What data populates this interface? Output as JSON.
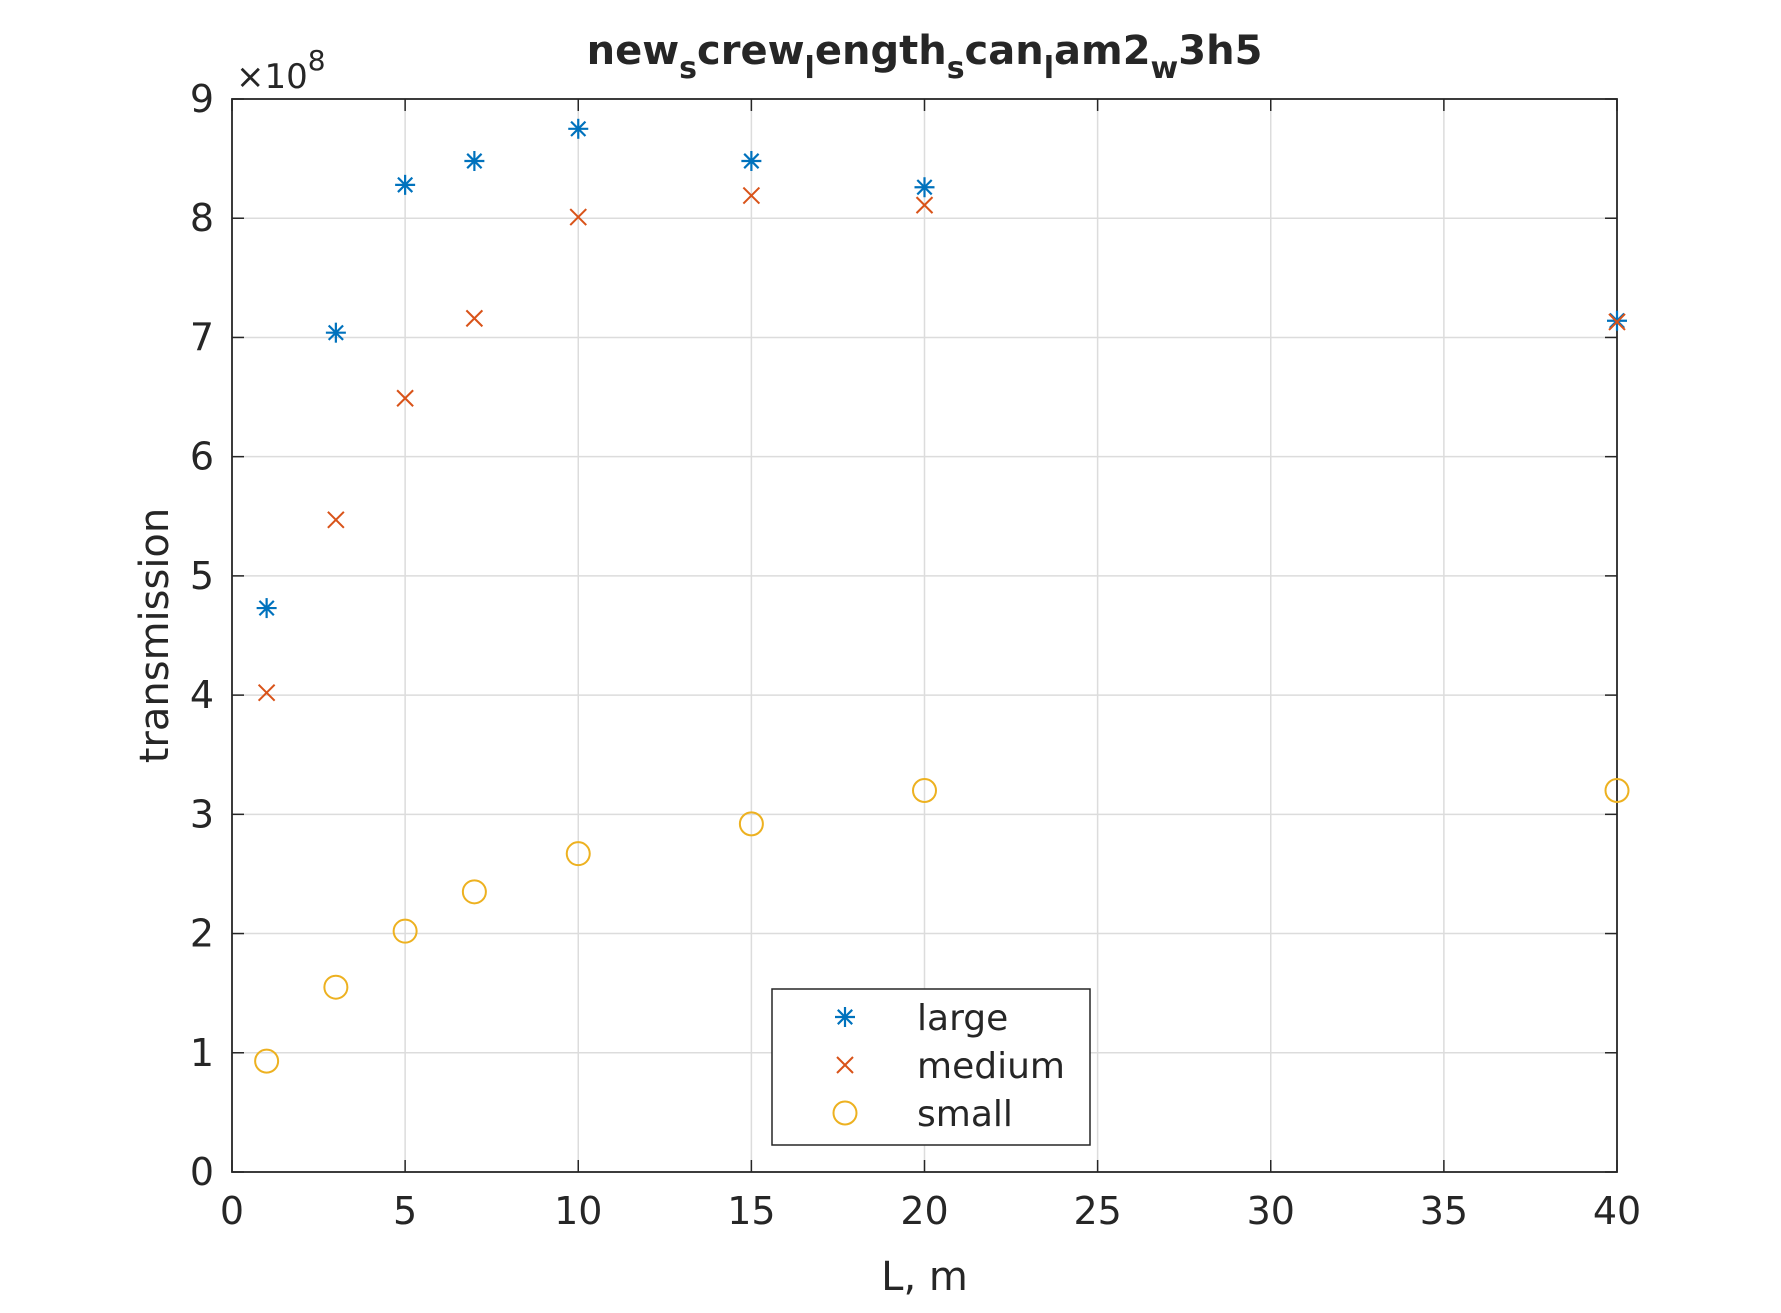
{
  "chart_data": {
    "type": "scatter",
    "title_parts": [
      {
        "text": "new",
        "sub": false
      },
      {
        "text": "s",
        "sub": true
      },
      {
        "text": "crew",
        "sub": false
      },
      {
        "text": "l",
        "sub": true
      },
      {
        "text": "ength",
        "sub": false
      },
      {
        "text": "s",
        "sub": true
      },
      {
        "text": "can",
        "sub": false
      },
      {
        "text": "l",
        "sub": true
      },
      {
        "text": "am2",
        "sub": false
      },
      {
        "text": "w",
        "sub": true
      },
      {
        "text": "3h5",
        "sub": false
      }
    ],
    "xlabel": "L, m",
    "ylabel": "transmission",
    "y_exponent": {
      "base": "×10",
      "power": "8"
    },
    "x_ticks": [
      {
        "value": 0,
        "label": "0"
      },
      {
        "value": 5,
        "label": "5"
      },
      {
        "value": 10,
        "label": "10"
      },
      {
        "value": 15,
        "label": "15"
      },
      {
        "value": 20,
        "label": "20"
      },
      {
        "value": 25,
        "label": "25"
      },
      {
        "value": 30,
        "label": "30"
      },
      {
        "value": 35,
        "label": "35"
      },
      {
        "value": 40,
        "label": "40"
      }
    ],
    "y_ticks": [
      {
        "value": 0,
        "label": "0"
      },
      {
        "value": 1,
        "label": "1"
      },
      {
        "value": 2,
        "label": "2"
      },
      {
        "value": 3,
        "label": "3"
      },
      {
        "value": 4,
        "label": "4"
      },
      {
        "value": 5,
        "label": "5"
      },
      {
        "value": 6,
        "label": "6"
      },
      {
        "value": 7,
        "label": "7"
      },
      {
        "value": 8,
        "label": "8"
      },
      {
        "value": 9,
        "label": "9"
      }
    ],
    "x_tick_positions": "tick labels 0..35 at equal spacing, then 40 one step after 35",
    "ylim": [
      0,
      9
    ],
    "y_scale_factor": 100000000,
    "grid": true,
    "legend_location": "bottom-center",
    "series": [
      {
        "name": "large",
        "marker": "asterisk",
        "color": "#0072BD",
        "x": [
          1,
          3,
          5,
          7,
          10,
          15,
          20,
          40
        ],
        "y": [
          4.73,
          7.04,
          8.28,
          8.48,
          8.75,
          8.48,
          8.26,
          7.14
        ]
      },
      {
        "name": "medium",
        "marker": "x",
        "color": "#D95319",
        "x": [
          1,
          3,
          5,
          7,
          10,
          15,
          20,
          40
        ],
        "y": [
          4.02,
          5.47,
          6.49,
          7.16,
          8.01,
          8.19,
          8.11,
          7.13
        ]
      },
      {
        "name": "small",
        "marker": "circle",
        "color": "#EDB120",
        "x": [
          1,
          3,
          5,
          7,
          10,
          15,
          20,
          40
        ],
        "y": [
          0.93,
          1.55,
          2.02,
          2.35,
          2.67,
          2.92,
          3.2,
          3.2
        ]
      }
    ]
  }
}
